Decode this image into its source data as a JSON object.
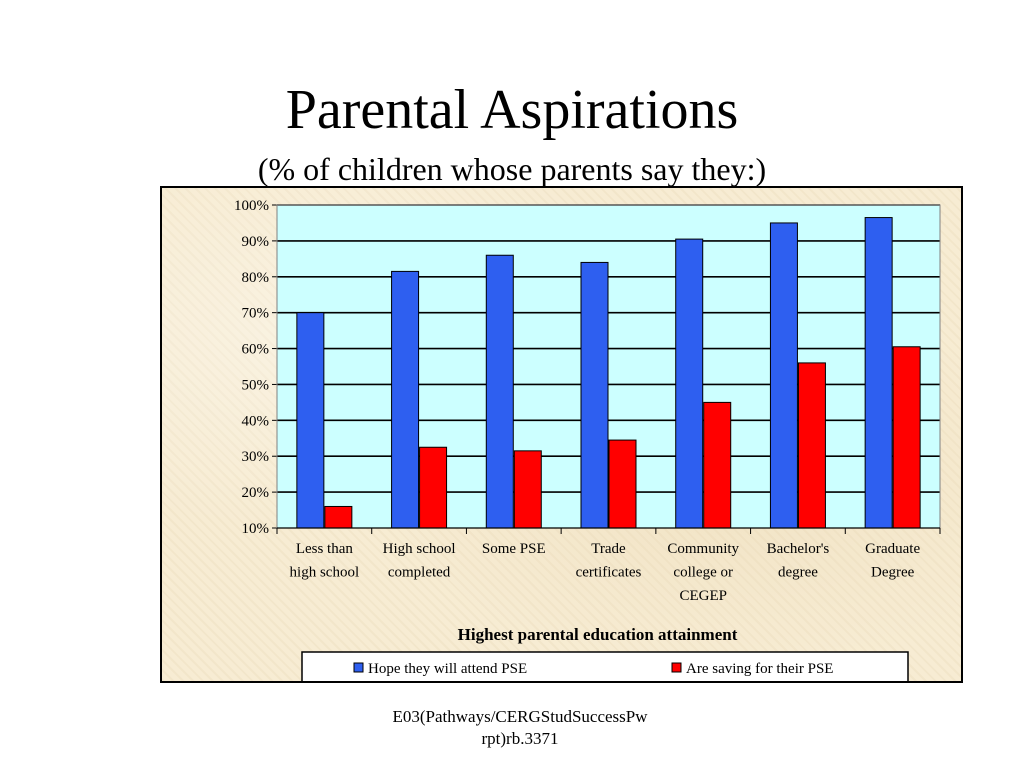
{
  "slide": {
    "title": "Parental Aspirations",
    "subtitle": "(% of children whose parents say they:)",
    "footer_line1": "E03(Pathways/CERGStudSuccessPw",
    "footer_line2": "rpt)rb.3371"
  },
  "colors": {
    "series_hope": "#2e5ff0",
    "series_saving": "#ff0000",
    "plot_background": "#ccffff",
    "panel_background": "#f7ecd3"
  },
  "chart_data": {
    "type": "bar",
    "title": "",
    "xlabel": "Highest parental education attainment",
    "ylabel": "",
    "ylim": [
      10,
      100
    ],
    "yticks": [
      "10%",
      "20%",
      "30%",
      "40%",
      "50%",
      "60%",
      "70%",
      "80%",
      "90%",
      "100%"
    ],
    "grid": true,
    "legend_position": "bottom",
    "categories": [
      [
        "Less than",
        "high school"
      ],
      [
        "High school",
        "completed"
      ],
      [
        "Some PSE"
      ],
      [
        "Trade",
        "certificates"
      ],
      [
        "Community",
        "college or",
        "CEGEP"
      ],
      [
        "Bachelor's",
        "degree"
      ],
      [
        "Graduate",
        "Degree"
      ]
    ],
    "series": [
      {
        "name": "Hope they will attend PSE",
        "values": [
          70,
          81.5,
          86,
          84,
          90.5,
          95,
          96.5
        ]
      },
      {
        "name": "Are saving for their PSE",
        "values": [
          16,
          32.5,
          31.5,
          34.5,
          45,
          56,
          60.5
        ]
      }
    ]
  }
}
